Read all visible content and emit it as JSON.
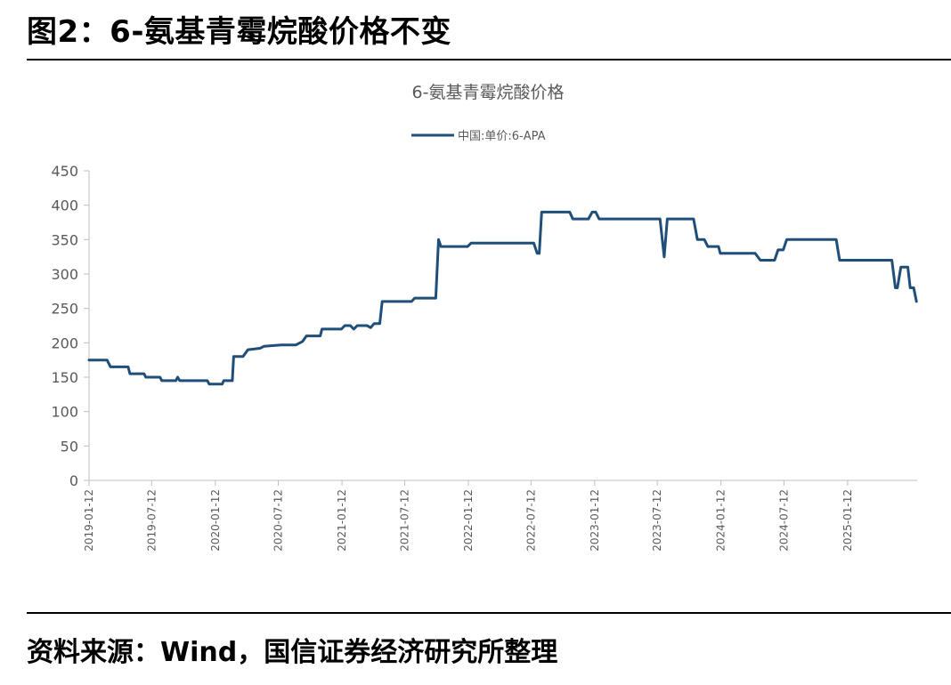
{
  "header": {
    "figure_title": "图2：6-氨基青霉烷酸价格不变"
  },
  "footer": {
    "source_note": "资料来源：Wind，国信证券经济研究所整理"
  },
  "chart_data": {
    "type": "line",
    "title": "6-氨基青霉烷酸价格",
    "legend_position": "top-center",
    "grid": false,
    "ylim": [
      0,
      450
    ],
    "yticks": [
      0,
      50,
      100,
      150,
      200,
      250,
      300,
      350,
      400,
      450
    ],
    "xlim": [
      "2019-01-12",
      "2025-08-01"
    ],
    "xticks": [
      "2019-01-12",
      "2019-07-12",
      "2020-01-12",
      "2020-07-12",
      "2021-01-12",
      "2021-07-12",
      "2022-01-12",
      "2022-07-12",
      "2023-01-12",
      "2023-07-12",
      "2024-01-12",
      "2024-07-12",
      "2025-01-12"
    ],
    "series": [
      {
        "name": "中国:单价:6-APA",
        "color": "#1f4e79",
        "points": [
          [
            "2019-01-12",
            175
          ],
          [
            "2019-03-05",
            175
          ],
          [
            "2019-03-15",
            165
          ],
          [
            "2019-05-05",
            165
          ],
          [
            "2019-05-10",
            155
          ],
          [
            "2019-06-20",
            155
          ],
          [
            "2019-06-25",
            150
          ],
          [
            "2019-08-05",
            150
          ],
          [
            "2019-08-10",
            145
          ],
          [
            "2019-09-20",
            145
          ],
          [
            "2019-09-25",
            150
          ],
          [
            "2019-10-01",
            145
          ],
          [
            "2019-12-20",
            145
          ],
          [
            "2019-12-25",
            140
          ],
          [
            "2020-02-01",
            140
          ],
          [
            "2020-02-05",
            145
          ],
          [
            "2020-03-01",
            145
          ],
          [
            "2020-03-05",
            180
          ],
          [
            "2020-04-01",
            180
          ],
          [
            "2020-04-15",
            190
          ],
          [
            "2020-05-20",
            192
          ],
          [
            "2020-06-01",
            195
          ],
          [
            "2020-07-20",
            197
          ],
          [
            "2020-09-01",
            197
          ],
          [
            "2020-09-20",
            202
          ],
          [
            "2020-10-01",
            210
          ],
          [
            "2020-11-10",
            210
          ],
          [
            "2020-11-15",
            220
          ],
          [
            "2021-01-10",
            220
          ],
          [
            "2021-01-20",
            225
          ],
          [
            "2021-02-05",
            225
          ],
          [
            "2021-02-15",
            220
          ],
          [
            "2021-02-25",
            225
          ],
          [
            "2021-03-25",
            225
          ],
          [
            "2021-04-05",
            222
          ],
          [
            "2021-04-15",
            228
          ],
          [
            "2021-05-01",
            228
          ],
          [
            "2021-05-08",
            260
          ],
          [
            "2021-08-01",
            260
          ],
          [
            "2021-08-10",
            265
          ],
          [
            "2021-10-10",
            265
          ],
          [
            "2021-10-18",
            350
          ],
          [
            "2021-10-25",
            340
          ],
          [
            "2022-01-10",
            340
          ],
          [
            "2022-01-20",
            345
          ],
          [
            "2022-07-20",
            345
          ],
          [
            "2022-07-30",
            330
          ],
          [
            "2022-08-05",
            330
          ],
          [
            "2022-08-12",
            390
          ],
          [
            "2022-11-01",
            390
          ],
          [
            "2022-11-10",
            380
          ],
          [
            "2022-12-25",
            380
          ],
          [
            "2023-01-05",
            390
          ],
          [
            "2023-01-15",
            390
          ],
          [
            "2023-01-25",
            380
          ],
          [
            "2023-07-20",
            380
          ],
          [
            "2023-08-01",
            325
          ],
          [
            "2023-08-10",
            380
          ],
          [
            "2023-10-25",
            380
          ],
          [
            "2023-11-05",
            350
          ],
          [
            "2023-11-25",
            350
          ],
          [
            "2023-12-05",
            340
          ],
          [
            "2024-01-05",
            340
          ],
          [
            "2024-01-10",
            330
          ],
          [
            "2024-04-20",
            330
          ],
          [
            "2024-05-05",
            320
          ],
          [
            "2024-06-15",
            320
          ],
          [
            "2024-06-25",
            335
          ],
          [
            "2024-07-10",
            335
          ],
          [
            "2024-07-20",
            350
          ],
          [
            "2024-12-10",
            350
          ],
          [
            "2024-12-20",
            320
          ],
          [
            "2025-05-20",
            320
          ],
          [
            "2025-05-30",
            280
          ],
          [
            "2025-06-05",
            280
          ],
          [
            "2025-06-15",
            310
          ],
          [
            "2025-07-05",
            310
          ],
          [
            "2025-07-12",
            280
          ],
          [
            "2025-07-22",
            280
          ],
          [
            "2025-07-30",
            260
          ]
        ]
      }
    ]
  }
}
